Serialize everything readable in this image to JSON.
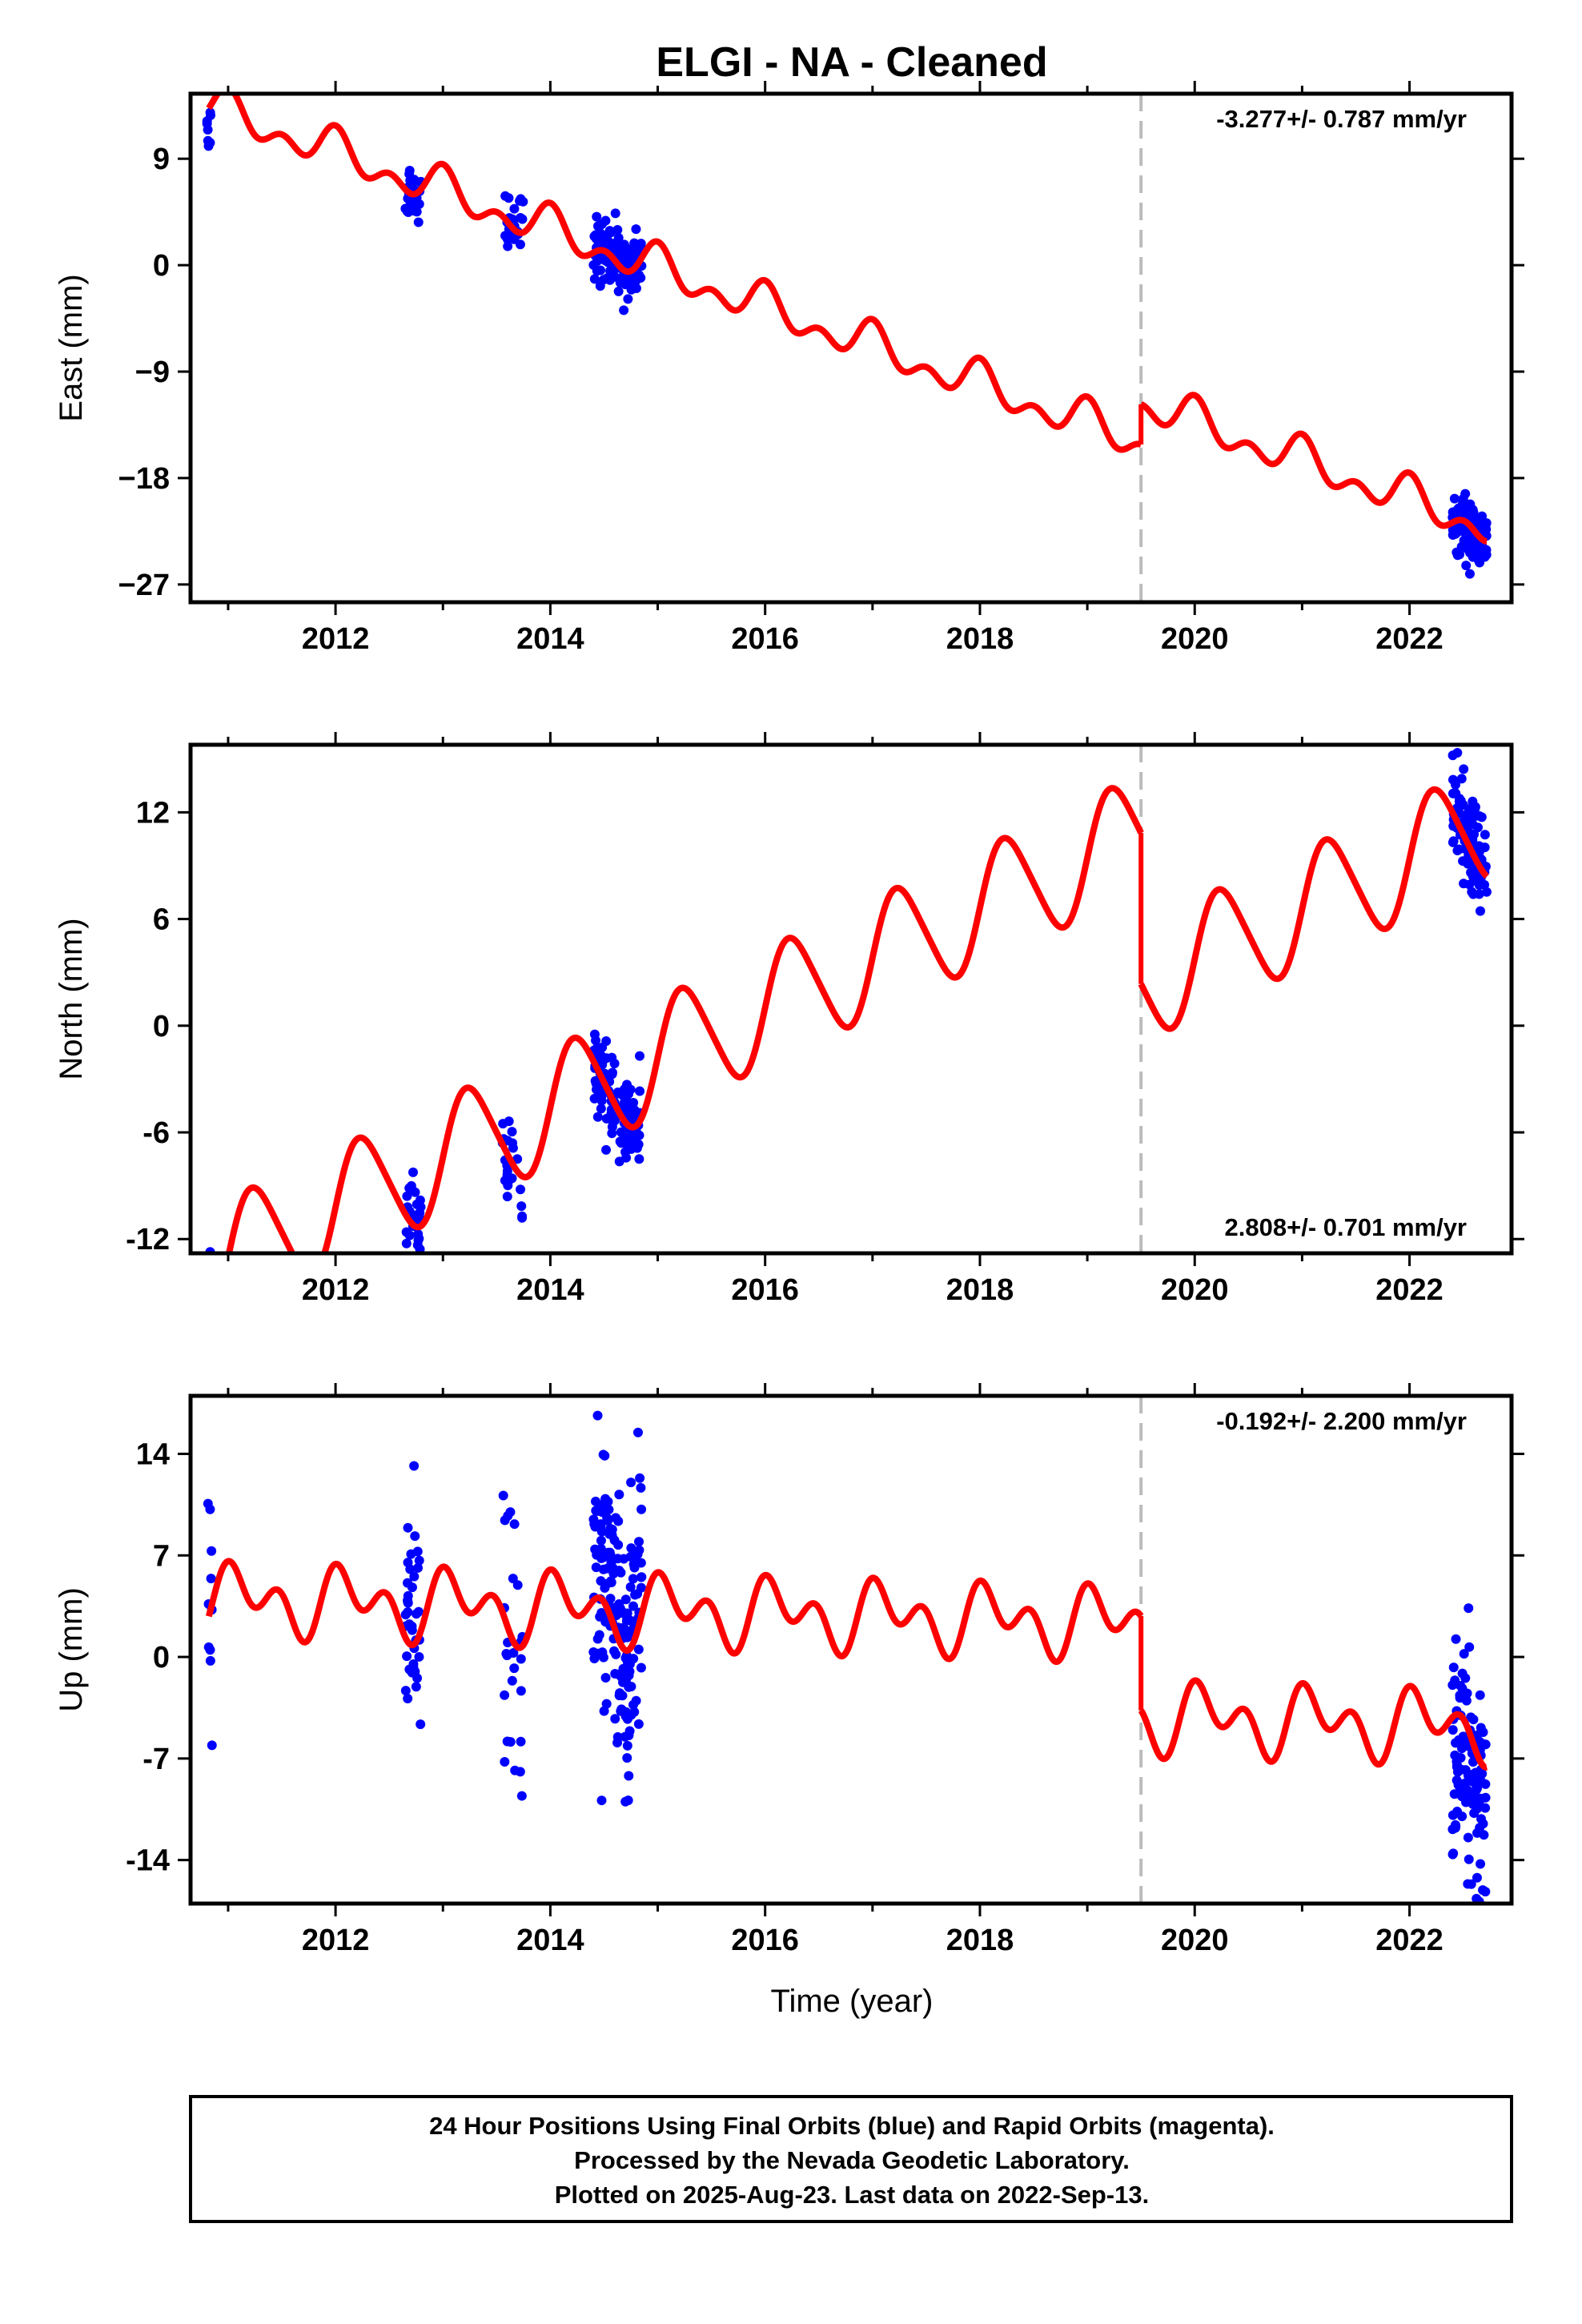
{
  "chart_data": {
    "type": "scatter",
    "title": "ELGI  - NA - Cleaned",
    "xlabel": "Time (year)",
    "xlim": [
      2010.65,
      2022.95
    ],
    "x_ticks": [
      2012,
      2014,
      2016,
      2018,
      2020,
      2022
    ],
    "x_tick_labels": [
      "2012",
      "2014",
      "2016",
      "2018",
      "2020",
      "2022"
    ],
    "equipment_change_year": 2019.5,
    "grid": false,
    "panels": [
      {
        "name": "East",
        "ylabel": "East (mm)",
        "ylim": [
          -28.5,
          14.5
        ],
        "y_ticks": [
          9,
          0,
          -9,
          -18,
          -27
        ],
        "y_tick_labels": [
          "9",
          "0",
          "−9",
          "−18",
          "−27"
        ],
        "rate_label": "-3.277+/- 0.787 mm/yr",
        "rate_position": "top-right",
        "model": {
          "color": "#ff0000",
          "break_year": 2019.5,
          "ref_year": 2010.83,
          "offsets": [
            13.4,
            16.8
          ],
          "rate": -3.277,
          "annual_amp": 1.2,
          "annual_phase": 1.57,
          "semiannual_amp": 1.05,
          "semiannual_phase": 1.57
        },
        "clusters": [
          {
            "start": 2010.8,
            "end": 2010.85,
            "n": 8,
            "offset": -1.6,
            "spread": 1.1,
            "seed": 11
          },
          {
            "start": 2012.65,
            "end": 2012.8,
            "n": 32,
            "offset": -0.2,
            "spread": 1.3,
            "seed": 12
          },
          {
            "start": 2013.55,
            "end": 2013.75,
            "n": 24,
            "offset": 0.2,
            "spread": 1.2,
            "seed": 13
          },
          {
            "start": 2014.4,
            "end": 2014.85,
            "n": 140,
            "offset": 0.4,
            "spread": 1.3,
            "seed": 14
          },
          {
            "start": 2022.4,
            "end": 2022.72,
            "n": 110,
            "offset": 0,
            "spread": 1.3,
            "seed": 15
          }
        ]
      },
      {
        "name": "North",
        "ylabel": "North (mm)",
        "ylim": [
          -12.8,
          15.8
        ],
        "y_ticks": [
          12,
          6,
          0,
          -6,
          -12
        ],
        "y_tick_labels": [
          "12",
          "6",
          "0",
          "-6",
          "-12"
        ],
        "rate_label": "2.808+/- 0.701 mm/yr",
        "rate_position": "bottom-right",
        "model": {
          "color": "#ff0000",
          "break_year": 2019.5,
          "ref_year": 2010.83,
          "offsets": [
            -13.5,
            -22.0
          ],
          "rate": 2.808,
          "annual_amp": 3.2,
          "annual_phase": 0,
          "semiannual_amp": 0.4,
          "semiannual_phase": 0
        },
        "clusters": [
          {
            "start": 2010.8,
            "end": 2010.85,
            "n": 8,
            "offset": 2.0,
            "spread": 1.2,
            "seed": 21
          },
          {
            "start": 2012.65,
            "end": 2012.8,
            "n": 32,
            "offset": 0.5,
            "spread": 1.1,
            "seed": 22
          },
          {
            "start": 2013.55,
            "end": 2013.75,
            "n": 22,
            "offset": 0.5,
            "spread": 1.3,
            "seed": 23
          },
          {
            "start": 2014.4,
            "end": 2014.85,
            "n": 140,
            "offset": 0,
            "spread": 1.2,
            "seed": 24
          },
          {
            "start": 2022.4,
            "end": 2022.72,
            "n": 120,
            "offset": 0.3,
            "spread": 1.3,
            "seed": 25
          }
        ]
      },
      {
        "name": "Up",
        "ylabel": "Up (mm)",
        "ylim": [
          -17,
          18
        ],
        "y_ticks": [
          14,
          7,
          0,
          -7,
          -14
        ],
        "y_tick_labels": [
          "14",
          "7",
          "0",
          "-7",
          "-14"
        ],
        "rate_label": "-0.192+/- 2.200 mm/yr",
        "rate_position": "top-right",
        "model": {
          "color": "#ff0000",
          "break_year": 2019.5,
          "ref_year": 2010.83,
          "offsets": [
            4.0,
            -2.5
          ],
          "rate": -0.192,
          "annual_amp": 1.5,
          "annual_phase": 0.8,
          "semiannual_amp": 1.6,
          "semiannual_phase": 1.8
        },
        "clusters": [
          {
            "start": 2010.8,
            "end": 2010.85,
            "n": 10,
            "offset": -1.5,
            "spread": 4.5,
            "seed": 31
          },
          {
            "start": 2012.65,
            "end": 2012.8,
            "n": 40,
            "offset": 2.5,
            "spread": 5.0,
            "seed": 32
          },
          {
            "start": 2013.55,
            "end": 2013.75,
            "n": 26,
            "offset": -1.0,
            "spread": 5.0,
            "seed": 33
          },
          {
            "start": 2014.4,
            "end": 2014.85,
            "n": 170,
            "offset": 1.5,
            "spread": 5.0,
            "seed": 34
          },
          {
            "start": 2022.4,
            "end": 2022.72,
            "n": 120,
            "offset": -3.0,
            "spread": 4.2,
            "seed": 35
          }
        ]
      }
    ]
  },
  "footer": {
    "line1": "24 Hour Positions Using Final Orbits (blue) and Rapid Orbits (magenta).",
    "line2": "Processed by the Nevada Geodetic Laboratory.",
    "line3": "Plotted on 2025-Aug-23. Last data on 2022-Sep-13."
  },
  "colors": {
    "data_points": "#0000ff",
    "model_line": "#ff0000",
    "break_line": "#bbbbbb",
    "frame": "#000000"
  }
}
